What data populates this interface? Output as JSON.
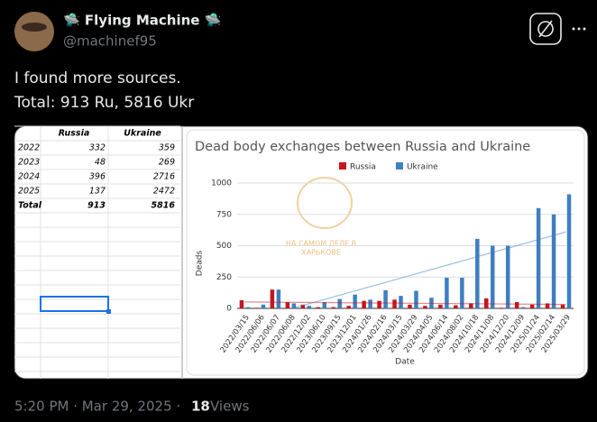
{
  "tweet": {
    "name": "🛸 Flying Machine 🛸",
    "handle": "@machinef95",
    "text": [
      "I found more sources.",
      "Total: 913 Ru, 5816 Ukr"
    ],
    "footer": {
      "time": "5:20 PM · Mar 29, 2025 ·",
      "views": "18",
      "views_label": "Views"
    }
  },
  "table": {
    "headers": [
      "Russia",
      "Ukraine"
    ],
    "rows": [
      [
        "2022",
        "332",
        "359"
      ],
      [
        "2023",
        "48",
        "269"
      ],
      [
        "2024",
        "396",
        "2716"
      ],
      [
        "2025",
        "137",
        "2472"
      ],
      [
        "Total",
        "913",
        "5816"
      ]
    ]
  },
  "watermark": [
    "НА САМОМ ДЕЛЕ В",
    "ХАРЬКОВЕ"
  ],
  "chart_data": {
    "type": "bar",
    "title": "Dead body exchanges between Russia and Ukraine",
    "x_label": "Date",
    "y_label": "Deads",
    "categories": [
      "2022/03/15",
      "2022/06/06",
      "2022/06/07",
      "2022/06/08",
      "2022/12/02",
      "2023/06/10",
      "2023/09/15",
      "2023/12/01",
      "2024/01/26",
      "2024/02/16",
      "2024/03/15",
      "2024/03/29",
      "2024/04/05",
      "2024/06/14",
      "2024/08/02",
      "2024/10/18",
      "2024/11/08",
      "2024/12/20",
      "2024/12/09",
      "2025/01/24",
      "2025/02/14",
      "2025/03/29"
    ],
    "series": [
      {
        "name": "Russia",
        "color": "#c5161d",
        "values": [
          65,
          5,
          150,
          50,
          30,
          10,
          10,
          20,
          60,
          60,
          70,
          30,
          20,
          30,
          25,
          40,
          80,
          5,
          50,
          30,
          40,
          30
        ]
      },
      {
        "name": "Ukraine",
        "color": "#3f7fc1",
        "values": [
          10,
          30,
          150,
          40,
          20,
          50,
          75,
          110,
          70,
          145,
          100,
          140,
          85,
          245,
          245,
          555,
          500,
          500,
          10,
          800,
          750,
          910
        ]
      }
    ],
    "ylim": [
      0,
      1000
    ],
    "yticks": [
      0,
      250,
      500,
      750,
      1000
    ],
    "grid": true,
    "legend": "top",
    "trendline": true
  }
}
